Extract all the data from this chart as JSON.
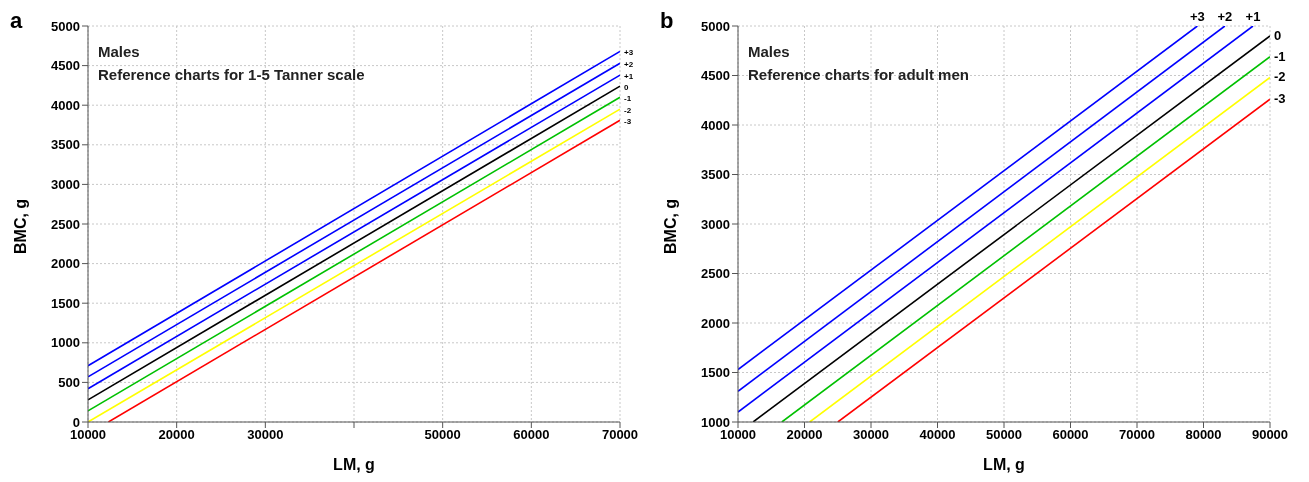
{
  "chart_data": [
    {
      "type": "line",
      "title": "a",
      "xlabel": "LM, g",
      "ylabel": "BMC, g",
      "annotations": [
        "Males",
        "Reference charts for 1-5 Tanner scale"
      ],
      "xlim": [
        10000,
        70000
      ],
      "xticks": [
        10000,
        20000,
        30000,
        {
          "value": 40000,
          "label": null
        },
        50000,
        60000,
        70000
      ],
      "ylim": [
        0,
        5000
      ],
      "yticks": [
        0,
        500,
        1000,
        1500,
        2000,
        2500,
        3000,
        3500,
        4000,
        4500,
        5000
      ],
      "grid": true,
      "legend": false,
      "marker": "none",
      "line_style": "solid",
      "series": [
        {
          "name": "+3",
          "color": "#0000ff",
          "x": [
            10000,
            70000
          ],
          "values": [
            710,
            4680
          ]
        },
        {
          "name": "+2",
          "color": "#0000ff",
          "x": [
            10000,
            70000
          ],
          "values": [
            570,
            4530
          ]
        },
        {
          "name": "+1",
          "color": "#0000ff",
          "x": [
            10000,
            70000
          ],
          "values": [
            420,
            4380
          ]
        },
        {
          "name": "0",
          "color": "#000000",
          "x": [
            10000,
            70000
          ],
          "values": [
            280,
            4240
          ]
        },
        {
          "name": "-1",
          "color": "#00c000",
          "x": [
            10000,
            70000
          ],
          "values": [
            140,
            4100
          ]
        },
        {
          "name": "-2",
          "color": "#ffff00",
          "x": [
            10000,
            70000
          ],
          "values": [
            0,
            3950
          ]
        },
        {
          "name": "-3",
          "color": "#ff0000",
          "x": [
            12300,
            70000
          ],
          "values": [
            0,
            3810
          ]
        }
      ]
    },
    {
      "type": "line",
      "title": "b",
      "xlabel": "LM, g",
      "ylabel": "BMC, g",
      "annotations": [
        "Males",
        "Reference charts for adult men"
      ],
      "xlim": [
        10000,
        90000
      ],
      "xticks": [
        10000,
        20000,
        30000,
        40000,
        50000,
        60000,
        70000,
        80000,
        90000
      ],
      "ylim": [
        1000,
        5000
      ],
      "yticks": [
        1000,
        1500,
        2000,
        2500,
        3000,
        3500,
        4000,
        4500,
        5000
      ],
      "grid": true,
      "legend": false,
      "marker": "none",
      "line_style": "solid",
      "series": [
        {
          "name": "+3",
          "color": "#0000ff",
          "x": [
            10000,
            79080
          ],
          "values": [
            1530,
            5000
          ]
        },
        {
          "name": "+2",
          "color": "#0000ff",
          "x": [
            10000,
            83210
          ],
          "values": [
            1310,
            5000
          ]
        },
        {
          "name": "+1",
          "color": "#0000ff",
          "x": [
            10000,
            87440
          ],
          "values": [
            1100,
            5000
          ]
        },
        {
          "name": "0",
          "color": "#000000",
          "x": [
            12270,
            90000
          ],
          "values": [
            1000,
            4900
          ]
        },
        {
          "name": "-1",
          "color": "#00c000",
          "x": [
            16590,
            90000
          ],
          "values": [
            1000,
            4690
          ]
        },
        {
          "name": "-2",
          "color": "#ffff00",
          "x": [
            20780,
            90000
          ],
          "values": [
            1000,
            4480
          ]
        },
        {
          "name": "-3",
          "color": "#ff0000",
          "x": [
            25010,
            90000
          ],
          "values": [
            1000,
            4260
          ]
        }
      ]
    }
  ]
}
